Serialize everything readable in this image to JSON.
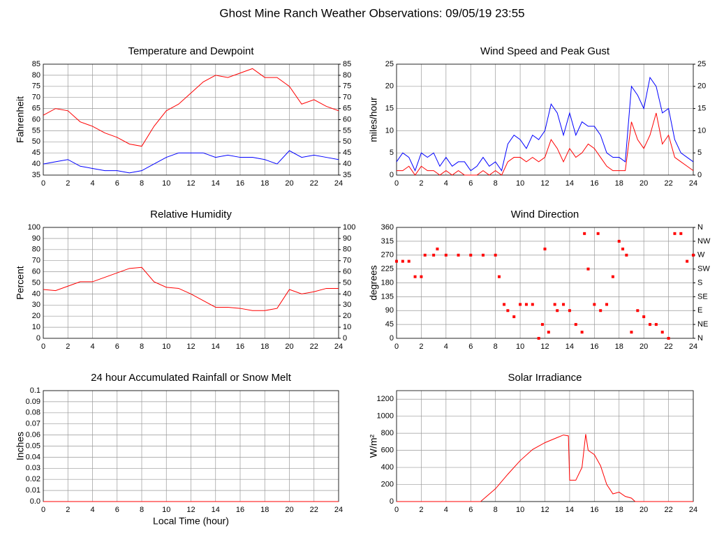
{
  "title": "Ghost Mine Ranch Weather Observations: 09/05/19 23:55",
  "chart_data": [
    {
      "type": "line",
      "title": "Temperature and Dewpoint",
      "ylabel": "Fahrenheit",
      "grid": true,
      "xlim": [
        0,
        24
      ],
      "xticks": [
        0,
        2,
        4,
        6,
        8,
        10,
        12,
        14,
        16,
        18,
        20,
        22,
        24
      ],
      "ylim": [
        35,
        85
      ],
      "yticks": [
        35,
        40,
        45,
        50,
        55,
        60,
        65,
        70,
        75,
        80,
        85
      ],
      "y2lim": [
        35,
        85
      ],
      "y2ticks": [
        35,
        40,
        45,
        50,
        55,
        60,
        65,
        70,
        75,
        80,
        85
      ],
      "series": [
        {
          "color": "#ff0000",
          "x": [
            0,
            1,
            2,
            3,
            4,
            5,
            6,
            7,
            8,
            9,
            10,
            11,
            12,
            13,
            14,
            15,
            16,
            17,
            18,
            19,
            20,
            21,
            22,
            23,
            24
          ],
          "values": [
            62,
            65,
            64,
            59,
            57,
            54,
            52,
            49,
            48,
            57,
            64,
            67,
            72,
            77,
            80,
            79,
            81,
            83,
            79,
            79,
            75,
            67,
            69,
            66,
            64
          ]
        },
        {
          "color": "#0000ff",
          "x": [
            0,
            1,
            2,
            3,
            4,
            5,
            6,
            7,
            8,
            9,
            10,
            11,
            12,
            13,
            14,
            15,
            16,
            17,
            18,
            19,
            20,
            21,
            22,
            23,
            24
          ],
          "values": [
            40,
            41,
            42,
            39,
            38,
            37,
            37,
            36,
            37,
            40,
            43,
            45,
            45,
            45,
            43,
            44,
            43,
            43,
            42,
            40,
            46,
            43,
            44,
            43,
            42
          ]
        }
      ]
    },
    {
      "type": "line",
      "title": "Wind Speed and Peak Gust",
      "ylabel": "miles/hour",
      "grid": true,
      "xlim": [
        0,
        24
      ],
      "xticks": [
        0,
        2,
        4,
        6,
        8,
        10,
        12,
        14,
        16,
        18,
        20,
        22,
        24
      ],
      "ylim": [
        0,
        25
      ],
      "yticks": [
        0,
        5,
        10,
        15,
        20,
        25
      ],
      "y2lim": [
        0,
        25
      ],
      "y2ticks": [
        0,
        5,
        10,
        15,
        20,
        25
      ],
      "series": [
        {
          "color": "#ff0000",
          "x": [
            0,
            0.5,
            1,
            1.5,
            2,
            2.5,
            3,
            3.5,
            4,
            4.5,
            5,
            5.5,
            6,
            6.5,
            7,
            7.5,
            8,
            8.5,
            9,
            9.5,
            10,
            10.5,
            11,
            11.5,
            12,
            12.5,
            13,
            13.5,
            14,
            14.5,
            15,
            15.5,
            16,
            16.5,
            17,
            17.5,
            18,
            18.5,
            19,
            19.5,
            20,
            20.5,
            21,
            21.5,
            22,
            22.5,
            23,
            23.5,
            24
          ],
          "values": [
            1,
            1,
            2,
            0,
            2,
            1,
            1,
            0,
            1,
            0,
            1,
            0,
            0,
            0,
            1,
            0,
            1,
            0,
            3,
            4,
            4,
            3,
            4,
            3,
            4,
            8,
            6,
            3,
            6,
            4,
            5,
            7,
            6,
            4,
            2,
            1,
            1,
            1,
            12,
            8,
            6,
            9,
            14,
            7,
            9,
            4,
            3,
            2,
            1
          ]
        },
        {
          "color": "#0000ff",
          "x": [
            0,
            0.5,
            1,
            1.5,
            2,
            2.5,
            3,
            3.5,
            4,
            4.5,
            5,
            5.5,
            6,
            6.5,
            7,
            7.5,
            8,
            8.5,
            9,
            9.5,
            10,
            10.5,
            11,
            11.5,
            12,
            12.5,
            13,
            13.5,
            14,
            14.5,
            15,
            15.5,
            16,
            16.5,
            17,
            17.5,
            18,
            18.5,
            19,
            19.5,
            20,
            20.5,
            21,
            21.5,
            22,
            22.5,
            23,
            23.5,
            24
          ],
          "values": [
            3,
            5,
            4,
            1,
            5,
            4,
            5,
            2,
            4,
            2,
            3,
            3,
            1,
            2,
            4,
            2,
            3,
            1,
            7,
            9,
            8,
            6,
            9,
            8,
            10,
            16,
            14,
            9,
            14,
            9,
            12,
            11,
            11,
            9,
            5,
            4,
            4,
            3,
            20,
            18,
            15,
            22,
            20,
            14,
            15,
            8,
            5,
            4,
            3
          ]
        }
      ]
    },
    {
      "type": "line",
      "title": "Relative Humidity",
      "ylabel": "Percent",
      "grid": true,
      "xlim": [
        0,
        24
      ],
      "xticks": [
        0,
        2,
        4,
        6,
        8,
        10,
        12,
        14,
        16,
        18,
        20,
        22,
        24
      ],
      "ylim": [
        0,
        100
      ],
      "yticks": [
        0,
        10,
        20,
        30,
        40,
        50,
        60,
        70,
        80,
        90,
        100
      ],
      "y2lim": [
        0,
        100
      ],
      "y2ticks": [
        0,
        10,
        20,
        30,
        40,
        50,
        60,
        70,
        80,
        90,
        100
      ],
      "series": [
        {
          "color": "#ff0000",
          "x": [
            0,
            1,
            2,
            3,
            4,
            5,
            6,
            7,
            8,
            9,
            10,
            11,
            12,
            13,
            14,
            15,
            16,
            17,
            18,
            19,
            20,
            21,
            22,
            23,
            24
          ],
          "values": [
            44,
            43,
            47,
            51,
            51,
            55,
            59,
            63,
            64,
            51,
            46,
            45,
            40,
            34,
            28,
            28,
            27,
            25,
            25,
            27,
            44,
            40,
            42,
            45,
            45
          ]
        }
      ]
    },
    {
      "type": "scatter",
      "title": "Wind Direction",
      "ylabel": "degrees",
      "grid": true,
      "xlim": [
        0,
        24
      ],
      "xticks": [
        0,
        2,
        4,
        6,
        8,
        10,
        12,
        14,
        16,
        18,
        20,
        22,
        24
      ],
      "ylim": [
        0,
        360
      ],
      "yticks": [
        0,
        45,
        90,
        135,
        180,
        225,
        270,
        315,
        360
      ],
      "y2lim": [
        0,
        360
      ],
      "y2ticks": [
        {
          "value": 0,
          "label": "N"
        },
        {
          "value": 45,
          "label": "NE"
        },
        {
          "value": 90,
          "label": "E"
        },
        {
          "value": 135,
          "label": "SE"
        },
        {
          "value": 180,
          "label": "S"
        },
        {
          "value": 225,
          "label": "SW"
        },
        {
          "value": 270,
          "label": "W"
        },
        {
          "value": 315,
          "label": "NW"
        },
        {
          "value": 360,
          "label": "N"
        }
      ],
      "series": [
        {
          "color": "#ff0000",
          "x": [
            0,
            0.5,
            1,
            1.5,
            2,
            2.3,
            3,
            3.3,
            4,
            5,
            6,
            7,
            8,
            8.3,
            8.7,
            9,
            9.5,
            10,
            10.5,
            11,
            11.5,
            11.8,
            12,
            12.3,
            12.8,
            13,
            13.5,
            14,
            14.5,
            15,
            15.2,
            15.5,
            16,
            16.3,
            16.5,
            17,
            17.5,
            18,
            18.3,
            18.6,
            19,
            19.5,
            20,
            20.5,
            21,
            21.5,
            22,
            22.5,
            23,
            23.5,
            24
          ],
          "values": [
            250,
            250,
            250,
            200,
            200,
            270,
            270,
            290,
            270,
            270,
            270,
            270,
            270,
            200,
            110,
            90,
            70,
            110,
            110,
            110,
            0,
            45,
            290,
            20,
            110,
            90,
            110,
            90,
            45,
            20,
            340,
            225,
            110,
            340,
            90,
            110,
            200,
            315,
            290,
            270,
            20,
            90,
            70,
            45,
            45,
            20,
            0,
            340,
            340,
            250,
            270
          ]
        }
      ]
    },
    {
      "type": "line",
      "title": "24 hour Accumulated Rainfall or Snow Melt",
      "ylabel": "Inches",
      "xlabel": "Local Time (hour)",
      "grid": true,
      "xlim": [
        0,
        24
      ],
      "xticks": [
        0,
        2,
        4,
        6,
        8,
        10,
        12,
        14,
        16,
        18,
        20,
        22,
        24
      ],
      "ylim": [
        0,
        0.1
      ],
      "yticks": [
        {
          "value": 0,
          "label": "0.0"
        },
        0.01,
        0.02,
        0.03,
        0.04,
        0.05,
        0.06,
        0.07,
        0.08,
        0.09,
        0.1
      ],
      "series": [
        {
          "color": "#ff0000",
          "x": [
            0,
            24
          ],
          "values": [
            0,
            0
          ]
        }
      ]
    },
    {
      "type": "line",
      "title": "Solar Irradiance",
      "ylabel": "W/m²",
      "grid": true,
      "xlim": [
        0,
        24
      ],
      "xticks": [
        0,
        2,
        4,
        6,
        8,
        10,
        12,
        14,
        16,
        18,
        20,
        22,
        24
      ],
      "ylim": [
        0,
        1300
      ],
      "yticks": [
        0,
        200,
        400,
        600,
        800,
        1000,
        1200
      ],
      "series": [
        {
          "color": "#ff0000",
          "x": [
            0,
            6.8,
            8,
            9,
            10,
            11,
            12,
            13,
            13.5,
            13.9,
            14,
            14.5,
            15,
            15.3,
            15.5,
            16,
            16.5,
            17,
            17.5,
            18,
            18.5,
            19,
            19.3,
            24
          ],
          "values": [
            0,
            0,
            150,
            320,
            480,
            610,
            690,
            750,
            780,
            770,
            250,
            250,
            400,
            790,
            600,
            550,
            420,
            200,
            90,
            110,
            60,
            40,
            0,
            0
          ]
        }
      ]
    }
  ]
}
